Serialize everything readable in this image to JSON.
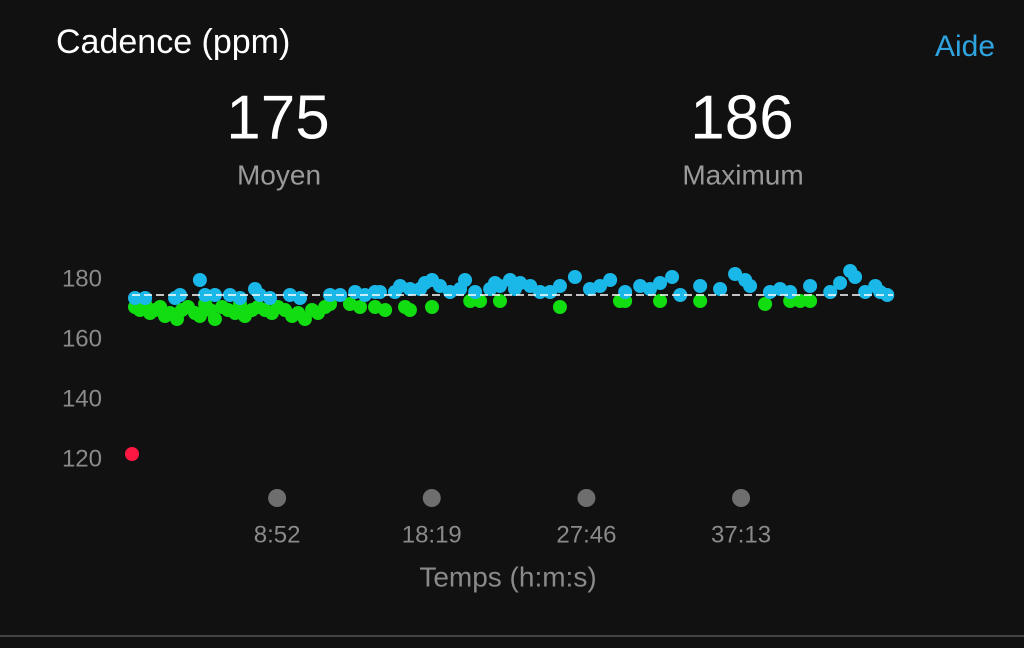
{
  "chart_data": {
    "type": "scatter",
    "title": "Cadence (ppm)",
    "help_label": "Aide",
    "stats": [
      {
        "value": 175,
        "label": "Moyen"
      },
      {
        "value": 186,
        "label": "Maximum"
      }
    ],
    "xlabel": "Temps (h:m:s)",
    "xlim": [
      0,
      2790
    ],
    "xticks": [
      {
        "value": 532,
        "label": "8:52"
      },
      {
        "value": 1099,
        "label": "18:19"
      },
      {
        "value": 1666,
        "label": "27:46"
      },
      {
        "value": 2233,
        "label": "37:13"
      }
    ],
    "ylim": [
      115,
      190
    ],
    "yticks": [
      120,
      140,
      160,
      180
    ],
    "series": [
      {
        "color": "#11dd11",
        "x": [
          11,
          29,
          48,
          66,
          84,
          103,
          121,
          139,
          165,
          183,
          205,
          231,
          249,
          268,
          286,
          304,
          330,
          352,
          378,
          396,
          414,
          440,
          462,
          488,
          513,
          535,
          561,
          587,
          609,
          634,
          660,
          682,
          708,
          726,
          799,
          836,
          891,
          928,
          1001,
          1019,
          1100,
          1240,
          1276,
          1349,
          1569,
          1789,
          1808,
          1936,
          2083,
          2321,
          2413,
          2450,
          2486
        ],
        "values": [
          171,
          170,
          172,
          169,
          170,
          171,
          168,
          169,
          167,
          170,
          171,
          169,
          168,
          172,
          170,
          167,
          171,
          170,
          169,
          172,
          168,
          170,
          171,
          170,
          169,
          171,
          170,
          168,
          169,
          167,
          170,
          169,
          171,
          172,
          172,
          171,
          171,
          170,
          171,
          170,
          171,
          173,
          173,
          173,
          171,
          173,
          173,
          173,
          173,
          172,
          173,
          173,
          173
        ]
      },
      {
        "color": "#1ab8e8",
        "x": [
          11,
          48,
          158,
          176,
          249,
          268,
          304,
          359,
          396,
          451,
          469,
          506,
          579,
          616,
          726,
          763,
          818,
          854,
          891,
          909,
          964,
          983,
          1019,
          1056,
          1074,
          1100,
          1129,
          1166,
          1203,
          1221,
          1258,
          1313,
          1331,
          1349,
          1386,
          1404,
          1423,
          1460,
          1496,
          1533,
          1569,
          1624,
          1679,
          1716,
          1753,
          1808,
          1863,
          1899,
          1936,
          1980,
          2010,
          2083,
          2156,
          2211,
          2248,
          2266,
          2339,
          2376,
          2413,
          2486,
          2560,
          2596,
          2633,
          2651,
          2688,
          2725,
          2743,
          2769
        ],
        "values": [
          174,
          174,
          174,
          175,
          180,
          175,
          175,
          175,
          174,
          177,
          175,
          174,
          175,
          174,
          175,
          175,
          176,
          175,
          176,
          176,
          176,
          178,
          177,
          177,
          179,
          180,
          178,
          176,
          177,
          180,
          176,
          177,
          179,
          178,
          180,
          177,
          179,
          178,
          176,
          176,
          178,
          181,
          177,
          178,
          180,
          176,
          178,
          177,
          179,
          181,
          175,
          178,
          177,
          182,
          180,
          178,
          176,
          177,
          176,
          178,
          176,
          179,
          183,
          181,
          176,
          178,
          176,
          175
        ]
      },
      {
        "color": "#ff1744",
        "x": [
          0
        ],
        "values": [
          122
        ]
      }
    ]
  }
}
